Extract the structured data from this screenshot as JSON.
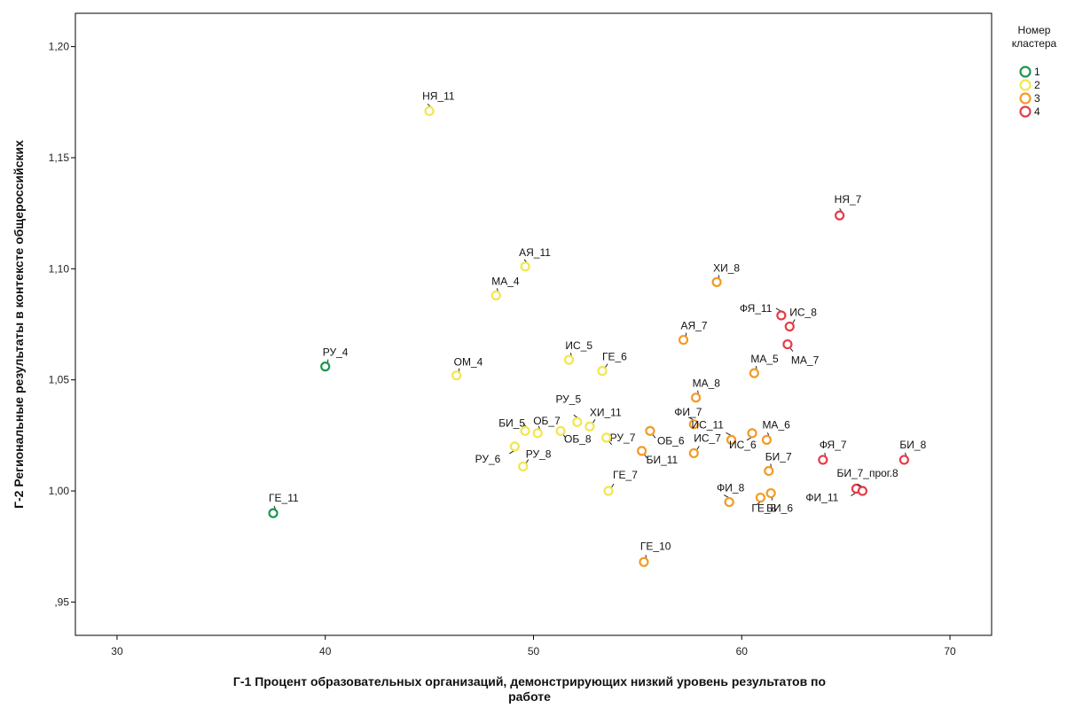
{
  "chart_data": {
    "type": "scatter",
    "xlabel_lines": [
      "Г-1 Процент образовательных организаций, демонстрирующих низкий уровень результатов по",
      "работе"
    ],
    "ylabel": "Г-2 Региональные результаты в контексте общероссийских",
    "xlim": [
      28,
      72
    ],
    "ylim": [
      0.935,
      1.215
    ],
    "x_ticks": [
      {
        "value": 30,
        "label": "30"
      },
      {
        "value": 40,
        "label": "40"
      },
      {
        "value": 50,
        "label": "50"
      },
      {
        "value": 60,
        "label": "60"
      },
      {
        "value": 70,
        "label": "70"
      }
    ],
    "y_ticks": [
      {
        "value": 0.95,
        "label": ",95"
      },
      {
        "value": 1.0,
        "label": "1,00"
      },
      {
        "value": 1.05,
        "label": "1,05"
      },
      {
        "value": 1.1,
        "label": "1,10"
      },
      {
        "value": 1.15,
        "label": "1,15"
      },
      {
        "value": 1.2,
        "label": "1,20"
      }
    ],
    "grid": false,
    "legend": {
      "title_lines": [
        "Номер",
        "кластера"
      ],
      "position": "top-right",
      "entries": [
        {
          "label": "1",
          "color": "#1a9850"
        },
        {
          "label": "2",
          "color": "#f2e64e"
        },
        {
          "label": "3",
          "color": "#f39a26"
        },
        {
          "label": "4",
          "color": "#e63b46"
        }
      ]
    },
    "points": [
      {
        "label": "ГЕ_11",
        "x": 37.5,
        "y": 0.99,
        "cluster": 1
      },
      {
        "label": "РУ_4",
        "x": 40.0,
        "y": 1.056,
        "cluster": 1
      },
      {
        "label": "НЯ_11",
        "x": 45.0,
        "y": 1.171,
        "cluster": 2
      },
      {
        "label": "ОМ_4",
        "x": 46.3,
        "y": 1.052,
        "cluster": 2
      },
      {
        "label": "МА_4",
        "x": 48.2,
        "y": 1.088,
        "cluster": 2
      },
      {
        "label": "АЯ_11",
        "x": 49.6,
        "y": 1.101,
        "cluster": 2
      },
      {
        "label": "РУ_6",
        "x": 49.1,
        "y": 1.02,
        "cluster": 2
      },
      {
        "label": "БИ_5",
        "x": 49.6,
        "y": 1.027,
        "cluster": 2
      },
      {
        "label": "ОБ_7",
        "x": 50.2,
        "y": 1.026,
        "cluster": 2
      },
      {
        "label": "РУ_8",
        "x": 49.5,
        "y": 1.011,
        "cluster": 2
      },
      {
        "label": "ИС_5",
        "x": 51.7,
        "y": 1.059,
        "cluster": 2
      },
      {
        "label": "ОБ_8",
        "x": 51.3,
        "y": 1.027,
        "cluster": 2
      },
      {
        "label": "РУ_5",
        "x": 52.1,
        "y": 1.031,
        "cluster": 2
      },
      {
        "label": "ХИ_11",
        "x": 52.7,
        "y": 1.029,
        "cluster": 2
      },
      {
        "label": "ГЕ_6",
        "x": 53.3,
        "y": 1.054,
        "cluster": 2
      },
      {
        "label": "РУ_7",
        "x": 53.5,
        "y": 1.024,
        "cluster": 2
      },
      {
        "label": "ГЕ_7",
        "x": 53.6,
        "y": 1.0,
        "cluster": 2
      },
      {
        "label": "ГЕ_10",
        "x": 55.3,
        "y": 0.968,
        "cluster": 3
      },
      {
        "label": "БИ_11",
        "x": 55.2,
        "y": 1.018,
        "cluster": 3
      },
      {
        "label": "ОБ_6",
        "x": 55.6,
        "y": 1.027,
        "cluster": 3
      },
      {
        "label": "АЯ_7",
        "x": 57.2,
        "y": 1.068,
        "cluster": 3
      },
      {
        "label": "МА_8",
        "x": 57.8,
        "y": 1.042,
        "cluster": 3
      },
      {
        "label": "ФИ_7",
        "x": 57.7,
        "y": 1.03,
        "cluster": 3
      },
      {
        "label": "ИС_7",
        "x": 57.7,
        "y": 1.017,
        "cluster": 3
      },
      {
        "label": "ХИ_8",
        "x": 58.8,
        "y": 1.094,
        "cluster": 3
      },
      {
        "label": "ФИ_8",
        "x": 59.4,
        "y": 0.995,
        "cluster": 3
      },
      {
        "label": "ИС_11",
        "x": 59.5,
        "y": 1.023,
        "cluster": 3
      },
      {
        "label": "ГЕ_8",
        "x": 60.9,
        "y": 0.997,
        "cluster": 3
      },
      {
        "label": "ИС_6",
        "x": 60.5,
        "y": 1.026,
        "cluster": 3
      },
      {
        "label": "МА_5",
        "x": 60.6,
        "y": 1.053,
        "cluster": 3
      },
      {
        "label": "МА_6",
        "x": 61.2,
        "y": 1.023,
        "cluster": 3
      },
      {
        "label": "БИ_7",
        "x": 61.3,
        "y": 1.009,
        "cluster": 3
      },
      {
        "label": "БИ_6",
        "x": 61.4,
        "y": 0.999,
        "cluster": 3
      },
      {
        "label": "ФЯ_11",
        "x": 61.9,
        "y": 1.079,
        "cluster": 4
      },
      {
        "label": "ИС_8",
        "x": 62.3,
        "y": 1.074,
        "cluster": 4
      },
      {
        "label": "МА_7",
        "x": 62.2,
        "y": 1.066,
        "cluster": 4
      },
      {
        "label": "НЯ_7",
        "x": 64.7,
        "y": 1.124,
        "cluster": 4
      },
      {
        "label": "ФЯ_7",
        "x": 63.9,
        "y": 1.014,
        "cluster": 4
      },
      {
        "label": "ФИ_11",
        "x": 65.5,
        "y": 1.001,
        "cluster": 4
      },
      {
        "label": "БИ_7_прог.8",
        "x": 65.8,
        "y": 1.0,
        "cluster": 4
      },
      {
        "label": "БИ_8",
        "x": 67.8,
        "y": 1.014,
        "cluster": 4
      }
    ]
  }
}
